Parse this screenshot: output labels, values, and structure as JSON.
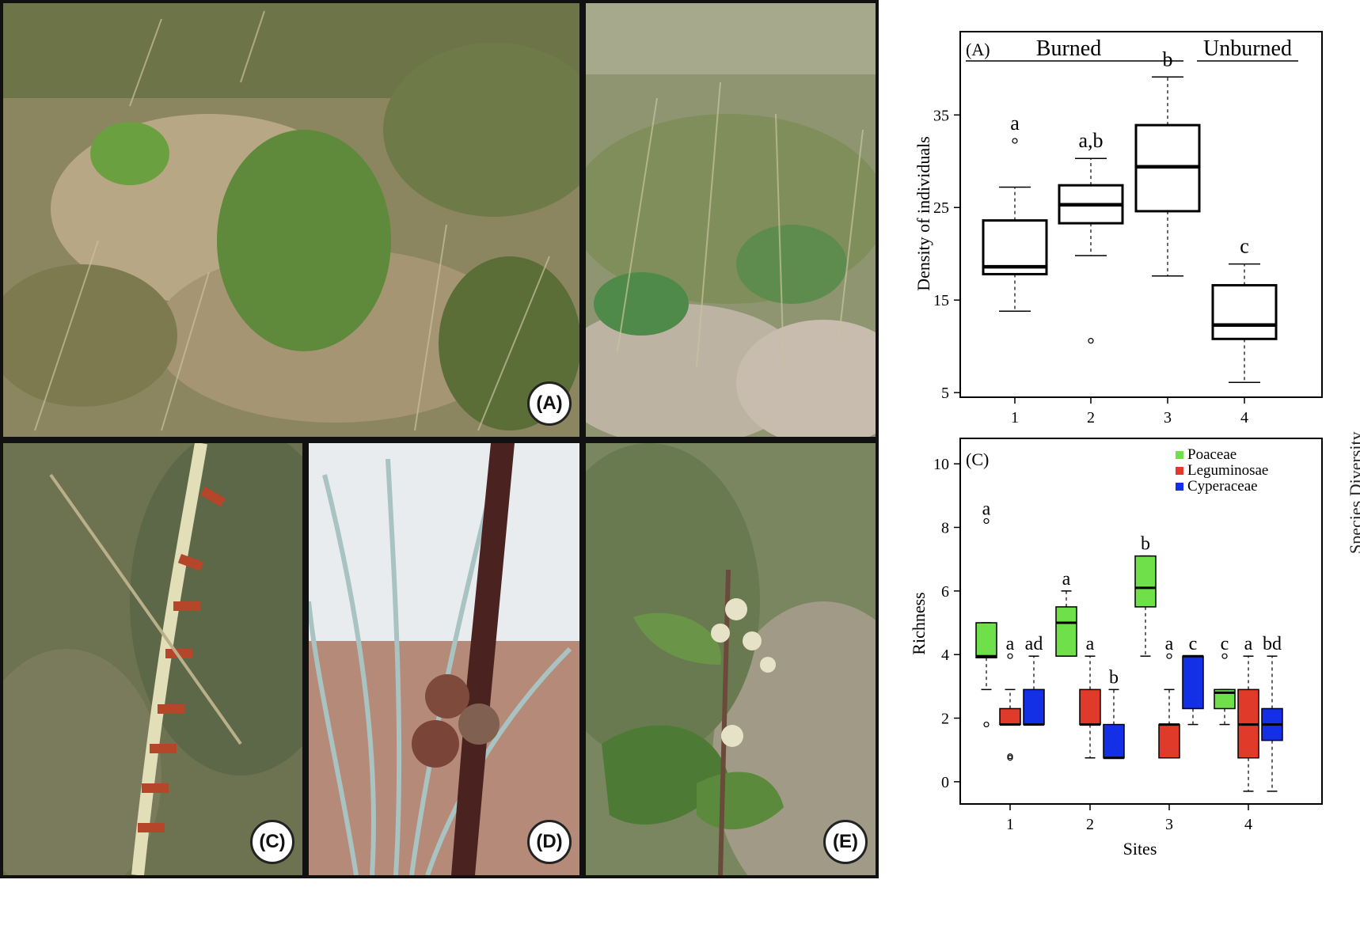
{
  "photos": [
    {
      "id": "photo-a",
      "label": "(A)"
    },
    {
      "id": "photo-b",
      "label": ""
    },
    {
      "id": "photo-c",
      "label": "(C)"
    },
    {
      "id": "photo-d",
      "label": "(D)"
    },
    {
      "id": "photo-e",
      "label": "(E)"
    }
  ],
  "side_label": "Species Diversity",
  "chart_data": [
    {
      "type": "box",
      "panel_label": "(A)",
      "group_labels": [
        "Burned",
        "Unburned"
      ],
      "ylabel": "Density of individuals",
      "xlabel": "",
      "ylim": [
        4.5,
        44
      ],
      "yticks": [
        5,
        15,
        25,
        35
      ],
      "categories": [
        "1",
        "2",
        "3",
        "4"
      ],
      "boxes": [
        {
          "site": "1",
          "whisker_low": 13.8,
          "q1": 17.8,
          "median": 18.6,
          "q3": 23.6,
          "whisker_high": 27.2,
          "outliers": [
            32.2
          ],
          "letter": "a"
        },
        {
          "site": "2",
          "whisker_low": 19.8,
          "q1": 23.3,
          "median": 25.3,
          "q3": 27.4,
          "whisker_high": 30.3,
          "outliers": [
            10.6
          ],
          "letter": "a,b"
        },
        {
          "site": "3",
          "whisker_low": 17.6,
          "q1": 24.6,
          "median": 29.4,
          "q3": 33.9,
          "whisker_high": 39.1,
          "outliers": [],
          "letter": "b"
        },
        {
          "site": "4",
          "whisker_low": 6.1,
          "q1": 10.8,
          "median": 12.3,
          "q3": 16.6,
          "whisker_high": 18.9,
          "outliers": [],
          "letter": "c"
        }
      ]
    },
    {
      "type": "box",
      "panel_label": "(C)",
      "ylabel": "Richness",
      "xlabel": "Sites",
      "ylim": [
        -0.7,
        10.8
      ],
      "yticks": [
        0,
        2,
        4,
        6,
        8,
        10
      ],
      "categories": [
        "1",
        "2",
        "3",
        "4"
      ],
      "legend": [
        {
          "name": "Poaceae",
          "color": "#6fe04a"
        },
        {
          "name": "Leguminosae",
          "color": "#e03a2a"
        },
        {
          "name": "Cyperaceae",
          "color": "#1430e6"
        }
      ],
      "series": [
        {
          "name": "Poaceae",
          "color": "#6fe04a",
          "boxes": [
            {
              "site": "1",
              "whisker_low": 2.9,
              "q1": 3.9,
              "median": 3.95,
              "q3": 5.0,
              "whisker_high": 5.0,
              "outliers": [
                8.2,
                1.8
              ],
              "letter": "a"
            },
            {
              "site": "2",
              "whisker_low": 3.95,
              "q1": 3.95,
              "median": 5.0,
              "q3": 5.5,
              "whisker_high": 6.0,
              "outliers": [],
              "letter": "a"
            },
            {
              "site": "3",
              "whisker_low": 3.95,
              "q1": 5.5,
              "median": 6.1,
              "q3": 7.1,
              "whisker_high": 7.1,
              "outliers": [],
              "letter": "b"
            },
            {
              "site": "4",
              "whisker_low": 1.8,
              "q1": 2.3,
              "median": 2.8,
              "q3": 2.9,
              "whisker_high": 2.9,
              "outliers": [
                3.95
              ],
              "letter": "c"
            }
          ]
        },
        {
          "name": "Leguminosae",
          "color": "#e03a2a",
          "boxes": [
            {
              "site": "1",
              "whisker_low": 1.8,
              "q1": 1.8,
              "median": 1.8,
              "q3": 2.3,
              "whisker_high": 2.9,
              "outliers": [
                3.95,
                0.75,
                0.8
              ],
              "letter": "a"
            },
            {
              "site": "2",
              "whisker_low": 0.75,
              "q1": 1.8,
              "median": 1.8,
              "q3": 2.9,
              "whisker_high": 3.95,
              "outliers": [],
              "letter": "a"
            },
            {
              "site": "3",
              "whisker_low": 0.75,
              "q1": 0.75,
              "median": 1.8,
              "q3": 1.8,
              "whisker_high": 2.9,
              "outliers": [
                3.95
              ],
              "letter": "a"
            },
            {
              "site": "4",
              "whisker_low": -0.3,
              "q1": 0.75,
              "median": 1.8,
              "q3": 2.9,
              "whisker_high": 3.95,
              "outliers": [],
              "letter": "a"
            }
          ]
        },
        {
          "name": "Cyperaceae",
          "color": "#1430e6",
          "boxes": [
            {
              "site": "1",
              "whisker_low": 1.8,
              "q1": 1.8,
              "median": 1.8,
              "q3": 2.9,
              "whisker_high": 3.95,
              "outliers": [],
              "letter": "ad"
            },
            {
              "site": "2",
              "whisker_low": 0.75,
              "q1": 0.75,
              "median": 0.75,
              "q3": 1.8,
              "whisker_high": 2.9,
              "outliers": [],
              "letter": "b"
            },
            {
              "site": "3",
              "whisker_low": 1.8,
              "q1": 2.3,
              "median": 3.95,
              "q3": 3.95,
              "whisker_high": 3.95,
              "outliers": [],
              "letter": "c"
            },
            {
              "site": "4",
              "whisker_low": -0.3,
              "q1": 1.3,
              "median": 1.8,
              "q3": 2.3,
              "whisker_high": 3.95,
              "outliers": [],
              "letter": "bd"
            }
          ]
        }
      ]
    }
  ]
}
